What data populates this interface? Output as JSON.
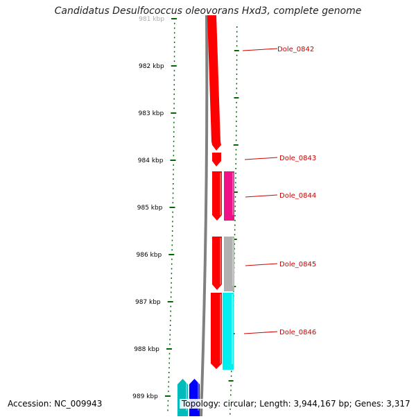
{
  "title": "Candidatus Desulfococcus oleovorans Hxd3, complete genome",
  "footer": {
    "accession": "Accession: NC_009943",
    "stats": "Topology: circular; Length: 3,944,167 bp; Genes: 3,317"
  },
  "colors": {
    "tick": "#006600",
    "label": "#cc0000",
    "backbone": "#808080",
    "cds_red": "#ff0000",
    "magenta": "#ee1188",
    "gray": "#b0b0b0",
    "cyan": "#00eeee",
    "teal": "#00bbbb",
    "blue": "#0000ff"
  },
  "kbp_labels": [
    {
      "kbp": 981,
      "text": "981 kbp",
      "faded": true
    },
    {
      "kbp": 982,
      "text": "982 kbp"
    },
    {
      "kbp": 983,
      "text": "983 kbp"
    },
    {
      "kbp": 984,
      "text": "984 kbp"
    },
    {
      "kbp": 985,
      "text": "985 kbp"
    },
    {
      "kbp": 986,
      "text": "986 kbp"
    },
    {
      "kbp": 987,
      "text": "987 kbp"
    },
    {
      "kbp": 988,
      "text": "988 kbp"
    },
    {
      "kbp": 989,
      "text": "989 kbp"
    }
  ],
  "gene_labels": [
    {
      "text": "Dole_0842",
      "kbp": 981.65
    },
    {
      "text": "Dole_0843",
      "kbp": 983.95
    },
    {
      "text": "Dole_0844",
      "kbp": 984.75
    },
    {
      "text": "Dole_0845",
      "kbp": 986.2
    },
    {
      "text": "Dole_0846",
      "kbp": 987.6
    }
  ]
}
